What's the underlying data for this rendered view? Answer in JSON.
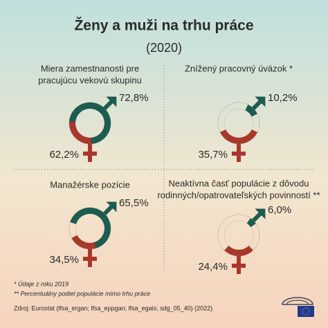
{
  "title": "Ženy a muži na trhu práce",
  "subtitle": "(2020)",
  "chart_data": [
    {
      "type": "gender-rings",
      "title": [
        "Miera zamestnanosti pre",
        "pracujúcu vekovú skupinu"
      ],
      "values": [
        72.8,
        62.2
      ],
      "value_labels": [
        "72,8%",
        "62,2%"
      ],
      "colors": [
        "#1d5c50",
        "#a8382b"
      ]
    },
    {
      "type": "gender-rings",
      "title": [
        "Znížený pracovný úväzok *"
      ],
      "values": [
        10.2,
        35.7
      ],
      "value_labels": [
        "10,2%",
        "35,7%"
      ],
      "colors": [
        "#1d5c50",
        "#a8382b"
      ]
    },
    {
      "type": "gender-rings",
      "title": [
        "Manažérske pozície"
      ],
      "values": [
        65.5,
        34.5
      ],
      "value_labels": [
        "65,5%",
        "34,5%"
      ],
      "colors": [
        "#1d5c50",
        "#a8382b"
      ]
    },
    {
      "type": "gender-rings",
      "title": [
        "Neaktívna časť populácie z dôvodu",
        "rodinných/opatrovateľských povinností **"
      ],
      "values": [
        6.0,
        24.4
      ],
      "value_labels": [
        "6,0%",
        "24,4%"
      ],
      "colors": [
        "#1d5c50",
        "#a8382b"
      ]
    }
  ],
  "footnotes": [
    "* Údaje z roku 2019",
    "** Percentuálny podiel populácie mimo trhu práce",
    "Zdroj: Eurostat (lfsa_ergan; lfsa_eppgan; lfsa_egais; sdg_05_40) (2022)"
  ]
}
